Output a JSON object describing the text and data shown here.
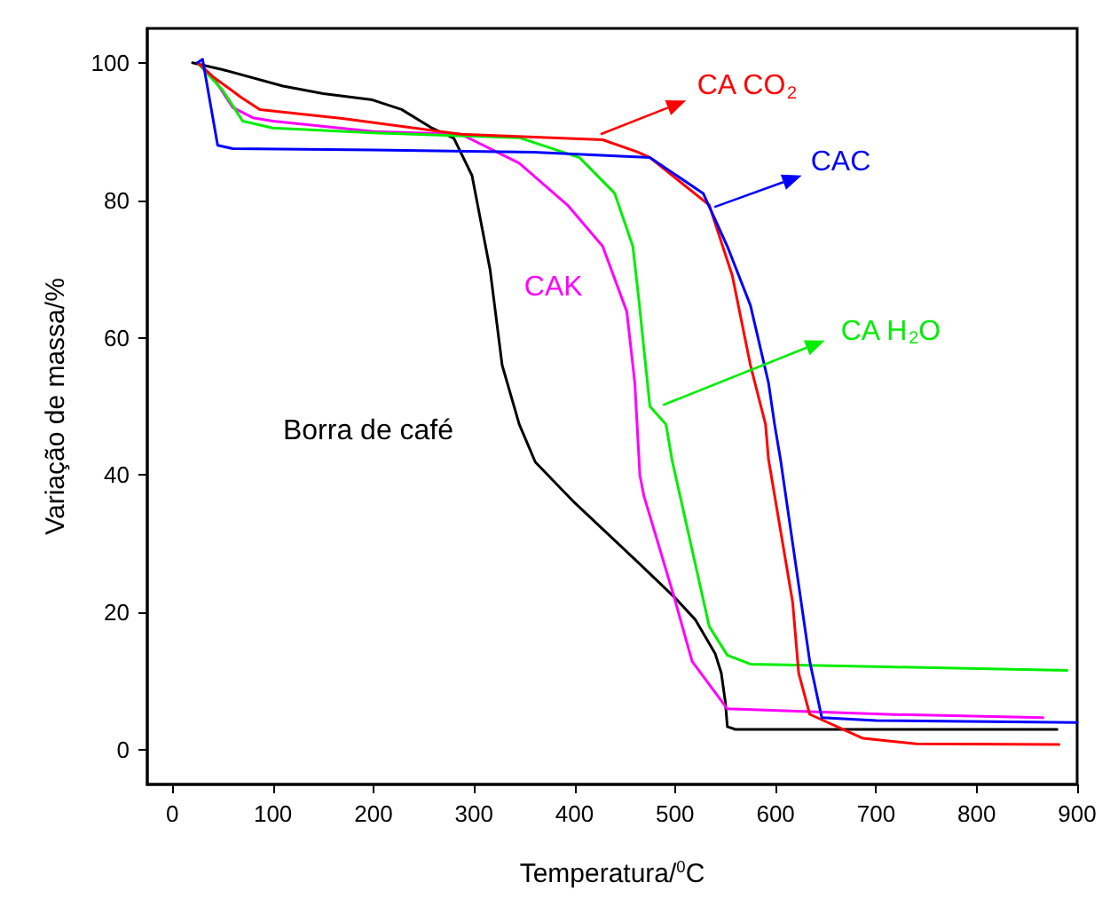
{
  "chart_data": {
    "type": "line",
    "xlabel": "Temperatura/$^{0}$C",
    "ylabel": "Variação de massa/%",
    "xlim": [
      -25,
      900
    ],
    "xticks": [
      0,
      100,
      200,
      300,
      400,
      500,
      600,
      700,
      800,
      900
    ],
    "ylim": [
      -5,
      105
    ],
    "yticks": [
      0,
      20,
      40,
      60,
      80,
      100
    ],
    "grid": false,
    "legend": "right",
    "marker": "none",
    "line_style": "solid",
    "series": [
      {
        "name": "Borra de café",
        "color": "#000000",
        "x": [
          20,
          50,
          110,
          150,
          199,
          228,
          257,
          280,
          298,
          316,
          328,
          345,
          361,
          400,
          464,
          499,
          520,
          540,
          546,
          550,
          552,
          560,
          700,
          880
        ],
        "values": [
          100,
          99,
          96.6,
          95.5,
          94.6,
          93.2,
          90.6,
          89,
          83.6,
          69.9,
          56,
          47.4,
          41.9,
          36,
          27.2,
          22.3,
          19,
          14,
          11.2,
          7,
          3.4,
          3,
          3,
          3
        ]
      },
      {
        "name": "CAK",
        "color": "#ff00ff",
        "x": [
          25,
          40,
          60,
          80,
          100,
          200,
          287,
          345,
          393,
          428,
          452,
          460,
          465,
          469,
          499,
          517,
          552,
          711,
          866
        ],
        "values": [
          100,
          98,
          93.5,
          92,
          91.5,
          90,
          89.6,
          85.4,
          79.3,
          73.3,
          63.8,
          53.4,
          40,
          37,
          22.3,
          12.9,
          6,
          5.2,
          4.7
        ]
      },
      {
        "name": "CA H$_{2}$O",
        "color": "#00ee00",
        "x": [
          25,
          50,
          70,
          100,
          200,
          300,
          345,
          405,
          440,
          458,
          464,
          475,
          491,
          497,
          534,
          552,
          575,
          711,
          890
        ],
        "values": [
          100,
          96,
          91.5,
          90.5,
          89.8,
          89.3,
          89.1,
          86.2,
          81,
          73.3,
          65.5,
          50,
          47.4,
          42.2,
          18,
          13.8,
          12.5,
          12.1,
          11.6
        ]
      },
      {
        "name": "CA CO$_{2}$",
        "color": "#ff0000",
        "x": [
          25,
          40,
          69,
          87,
          169,
          287,
          428,
          463,
          475,
          534,
          557,
          575,
          590,
          593,
          617,
          623,
          634,
          687,
          740,
          882
        ],
        "values": [
          100,
          98,
          94.9,
          93.2,
          91.9,
          89.6,
          88.8,
          87,
          86.2,
          79.3,
          69,
          56,
          47.4,
          42.3,
          21.5,
          11.2,
          5.2,
          1.7,
          0.9,
          0.8
        ]
      },
      {
        "name": "CAC",
        "color": "#0000ff",
        "x": [
          25,
          30,
          45,
          60,
          200,
          359,
          475,
          528,
          552,
          575,
          593,
          599,
          605,
          634,
          646,
          700,
          900
        ],
        "values": [
          100,
          100.5,
          88,
          87.5,
          87.3,
          87,
          86.2,
          81,
          73.3,
          64.7,
          53.4,
          47.4,
          42.2,
          12.9,
          4.7,
          4.3,
          4
        ]
      }
    ]
  }
}
